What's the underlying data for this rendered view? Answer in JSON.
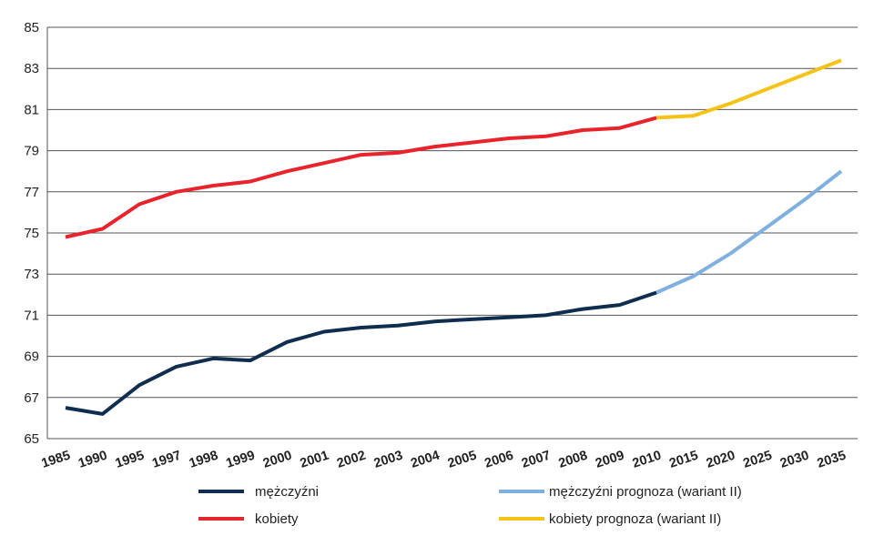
{
  "chart_data": {
    "type": "line",
    "title": "",
    "xlabel": "",
    "ylabel": "",
    "ylim": [
      65,
      85
    ],
    "yticks": [
      65,
      67,
      69,
      71,
      73,
      75,
      77,
      79,
      81,
      83,
      85
    ],
    "grid": true,
    "legend_position": "bottom",
    "categories": [
      "1985",
      "1990",
      "1995",
      "1997",
      "1998",
      "1999",
      "2000",
      "2001",
      "2002",
      "2003",
      "2004",
      "2005",
      "2006",
      "2007",
      "2008",
      "2009",
      "2010",
      "2015",
      "2020",
      "2025",
      "2030",
      "2035"
    ],
    "series": [
      {
        "name": "mężczyźni",
        "color": "#0f2d4f",
        "values": [
          66.5,
          66.2,
          67.6,
          68.5,
          68.9,
          68.8,
          69.7,
          70.2,
          70.4,
          70.5,
          70.7,
          70.8,
          70.9,
          71.0,
          71.3,
          71.5,
          72.1,
          null,
          null,
          null,
          null,
          null
        ]
      },
      {
        "name": "kobiety",
        "color": "#e8232b",
        "values": [
          74.8,
          75.2,
          76.4,
          77.0,
          77.3,
          77.5,
          78.0,
          78.4,
          78.8,
          78.9,
          79.2,
          79.4,
          79.6,
          79.7,
          80.0,
          80.1,
          80.6,
          null,
          null,
          null,
          null,
          null
        ]
      },
      {
        "name": "mężczyźni prognoza (wariant II)",
        "color": "#7fb0de",
        "values": [
          null,
          null,
          null,
          null,
          null,
          null,
          null,
          null,
          null,
          null,
          null,
          null,
          null,
          null,
          null,
          null,
          72.1,
          72.9,
          74.0,
          75.3,
          76.6,
          78.0
        ]
      },
      {
        "name": "kobiety prognoza (wariant II)",
        "color": "#f5c218",
        "values": [
          null,
          null,
          null,
          null,
          null,
          null,
          null,
          null,
          null,
          null,
          null,
          null,
          null,
          null,
          null,
          null,
          80.6,
          80.7,
          81.3,
          82.0,
          82.7,
          83.4
        ]
      }
    ]
  }
}
